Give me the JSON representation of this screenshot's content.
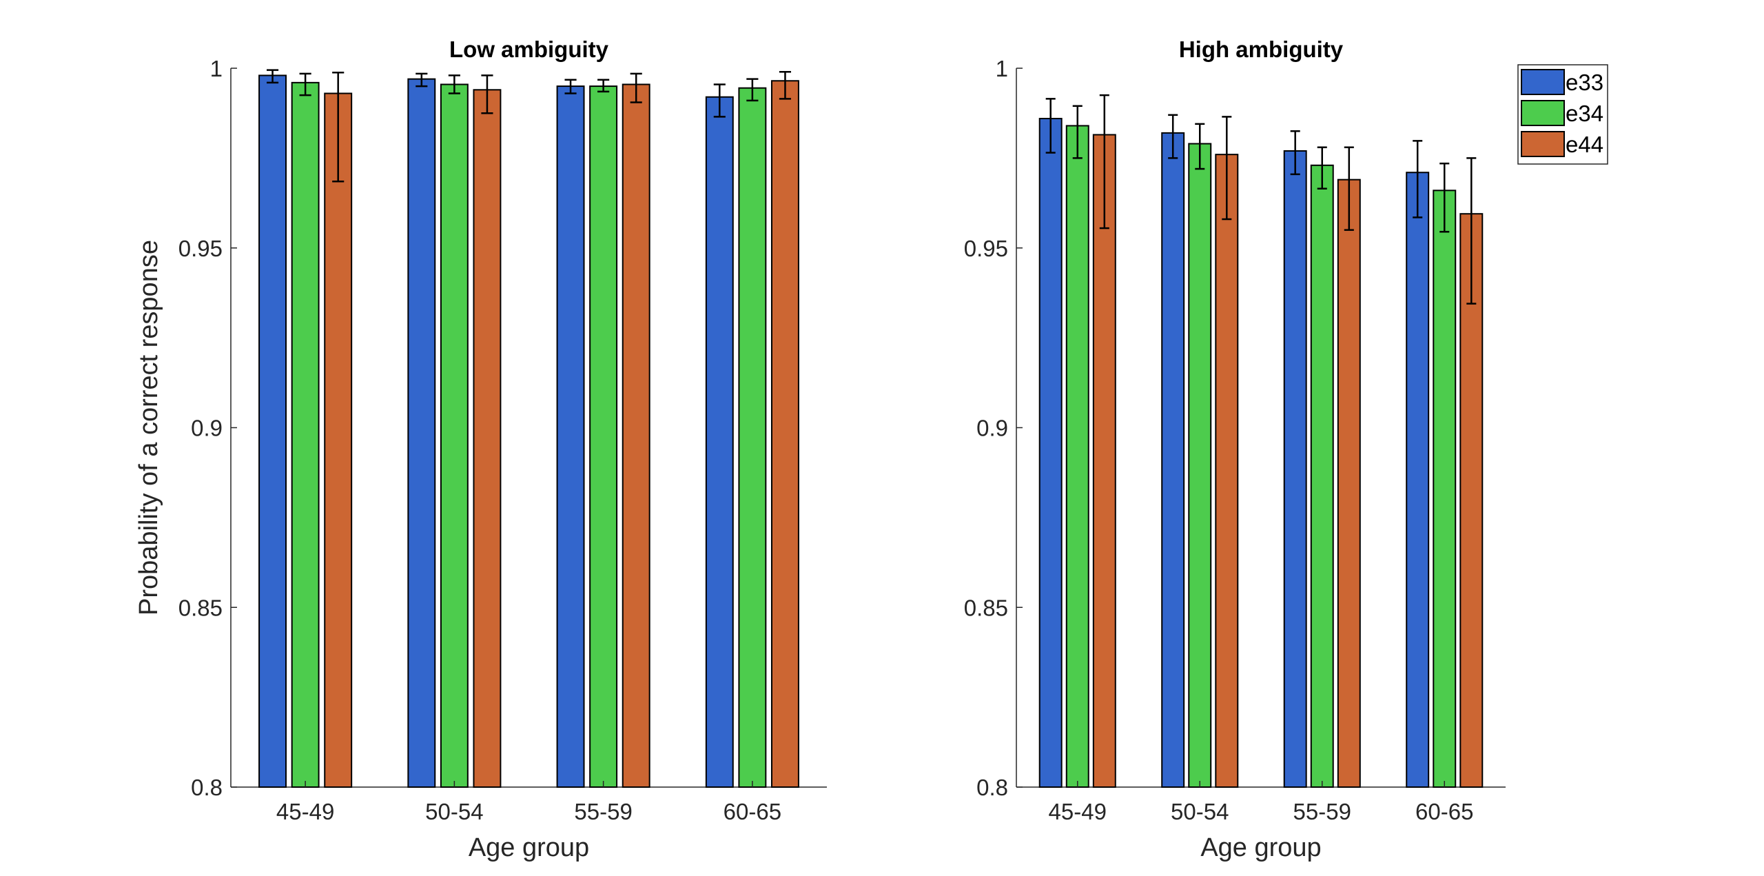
{
  "chart_data": [
    {
      "type": "bar",
      "title": "Low ambiguity",
      "xlabel": "Age group",
      "ylabel": "Probability of a correct response",
      "ylim": [
        0.8,
        1.0
      ],
      "yticks": [
        "0.8",
        "0.85",
        "0.9",
        "0.95",
        "1"
      ],
      "categories": [
        "45-49",
        "50-54",
        "55-59",
        "60-65"
      ],
      "series": [
        {
          "name": "e33",
          "values": [
            0.998,
            0.997,
            0.995,
            0.992
          ],
          "err_low": [
            0.996,
            0.995,
            0.993,
            0.9865
          ],
          "err_high": [
            0.9995,
            0.9985,
            0.9968,
            0.9955
          ]
        },
        {
          "name": "e34",
          "values": [
            0.996,
            0.9955,
            0.995,
            0.9945
          ],
          "err_low": [
            0.9925,
            0.993,
            0.9935,
            0.991
          ],
          "err_high": [
            0.9985,
            0.998,
            0.9968,
            0.997
          ]
        },
        {
          "name": "e44",
          "values": [
            0.993,
            0.994,
            0.9955,
            0.9965
          ],
          "err_low": [
            0.9685,
            0.9875,
            0.9905,
            0.9915
          ],
          "err_high": [
            0.9988,
            0.998,
            0.9985,
            0.999
          ]
        }
      ],
      "grid": false,
      "legend": "none"
    },
    {
      "type": "bar",
      "title": "High ambiguity",
      "xlabel": "Age group",
      "ylabel": "",
      "ylim": [
        0.8,
        1.0
      ],
      "yticks": [
        "0.8",
        "0.85",
        "0.9",
        "0.95",
        "1"
      ],
      "categories": [
        "45-49",
        "50-54",
        "55-59",
        "60-65"
      ],
      "series": [
        {
          "name": "e33",
          "values": [
            0.986,
            0.982,
            0.977,
            0.971
          ],
          "err_low": [
            0.9765,
            0.975,
            0.9705,
            0.9585
          ],
          "err_high": [
            0.9915,
            0.987,
            0.9825,
            0.9798
          ]
        },
        {
          "name": "e34",
          "values": [
            0.984,
            0.979,
            0.973,
            0.966
          ],
          "err_low": [
            0.975,
            0.972,
            0.9665,
            0.9545
          ],
          "err_high": [
            0.9895,
            0.9845,
            0.978,
            0.9735
          ]
        },
        {
          "name": "e44",
          "values": [
            0.9815,
            0.976,
            0.969,
            0.9595
          ],
          "err_low": [
            0.9555,
            0.958,
            0.955,
            0.9345
          ],
          "err_high": [
            0.9925,
            0.9865,
            0.978,
            0.975
          ]
        }
      ],
      "grid": false,
      "legend": "top-right"
    }
  ],
  "legend": {
    "items": [
      {
        "label": "e33",
        "color": "#3366cc"
      },
      {
        "label": "e34",
        "color": "#4dcc4d"
      },
      {
        "label": "e44",
        "color": "#cc6633"
      }
    ]
  }
}
